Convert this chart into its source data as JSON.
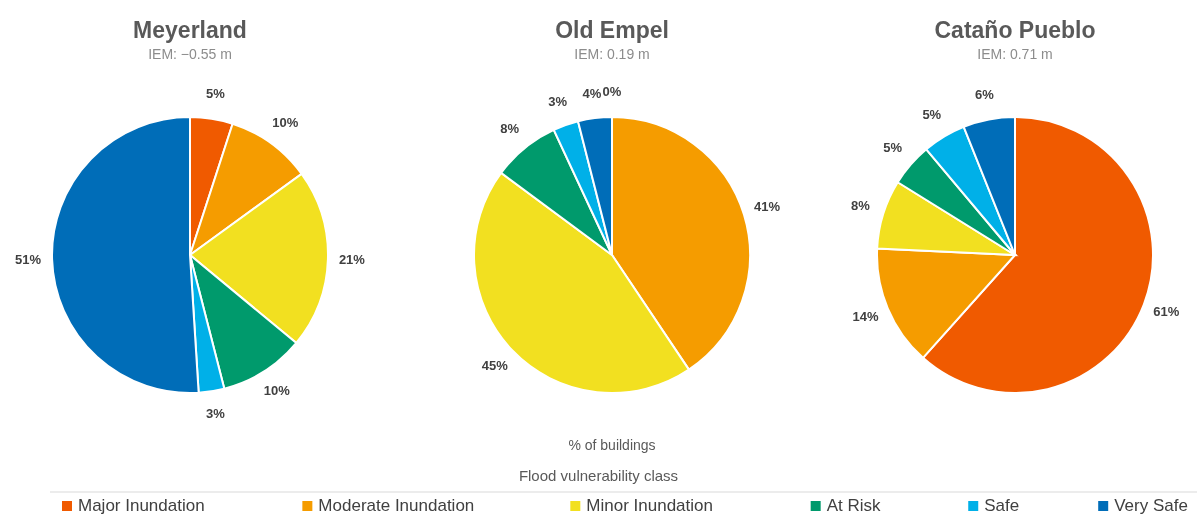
{
  "chart_data": [
    {
      "type": "pie",
      "title": "Meyerland",
      "subtitle": "IEM: −0.55 m",
      "legend": "bottom",
      "legend_title": "Flood vulnerability class",
      "categories": [
        "Major Inundation",
        "Moderate Inundation",
        "Minor Inundation",
        "At Risk",
        "Safe",
        "Very Safe"
      ],
      "values": [
        5,
        10,
        21,
        10,
        3,
        51
      ],
      "value_labels": [
        "5%",
        "10%",
        "21%",
        "10%",
        "3%",
        "51%"
      ],
      "colors": [
        "#f05a00",
        "#f59c00",
        "#f2e020",
        "#009a6c",
        "#00b0e8",
        "#006db8"
      ]
    },
    {
      "type": "pie",
      "title": "Old Empel",
      "subtitle": "IEM: 0.19 m",
      "xlabel": "% of buildings",
      "categories": [
        null,
        null,
        null,
        null,
        null,
        null
      ],
      "values": [
        0,
        41,
        45,
        8,
        3,
        4
      ],
      "value_labels": [
        "0%",
        "41%",
        "45%",
        "8%",
        "3%",
        "4%"
      ],
      "colors": [
        "#f05a00",
        "#f59c00",
        "#f2e020",
        "#009a6c",
        "#00b0e8",
        "#006db8"
      ]
    },
    {
      "type": "pie",
      "title": "Cataño Pueblo",
      "subtitle": "IEM: 0.71 m",
      "categories": [
        null,
        null,
        null,
        null,
        null,
        null
      ],
      "values": [
        61,
        14,
        8,
        5,
        5,
        6
      ],
      "value_labels": [
        "61%",
        "14%",
        "8%",
        "5%",
        "5%",
        "6%"
      ],
      "colors": [
        "#f05a00",
        "#f59c00",
        "#f2e020",
        "#009a6c",
        "#00b0e8",
        "#006db8"
      ]
    }
  ]
}
